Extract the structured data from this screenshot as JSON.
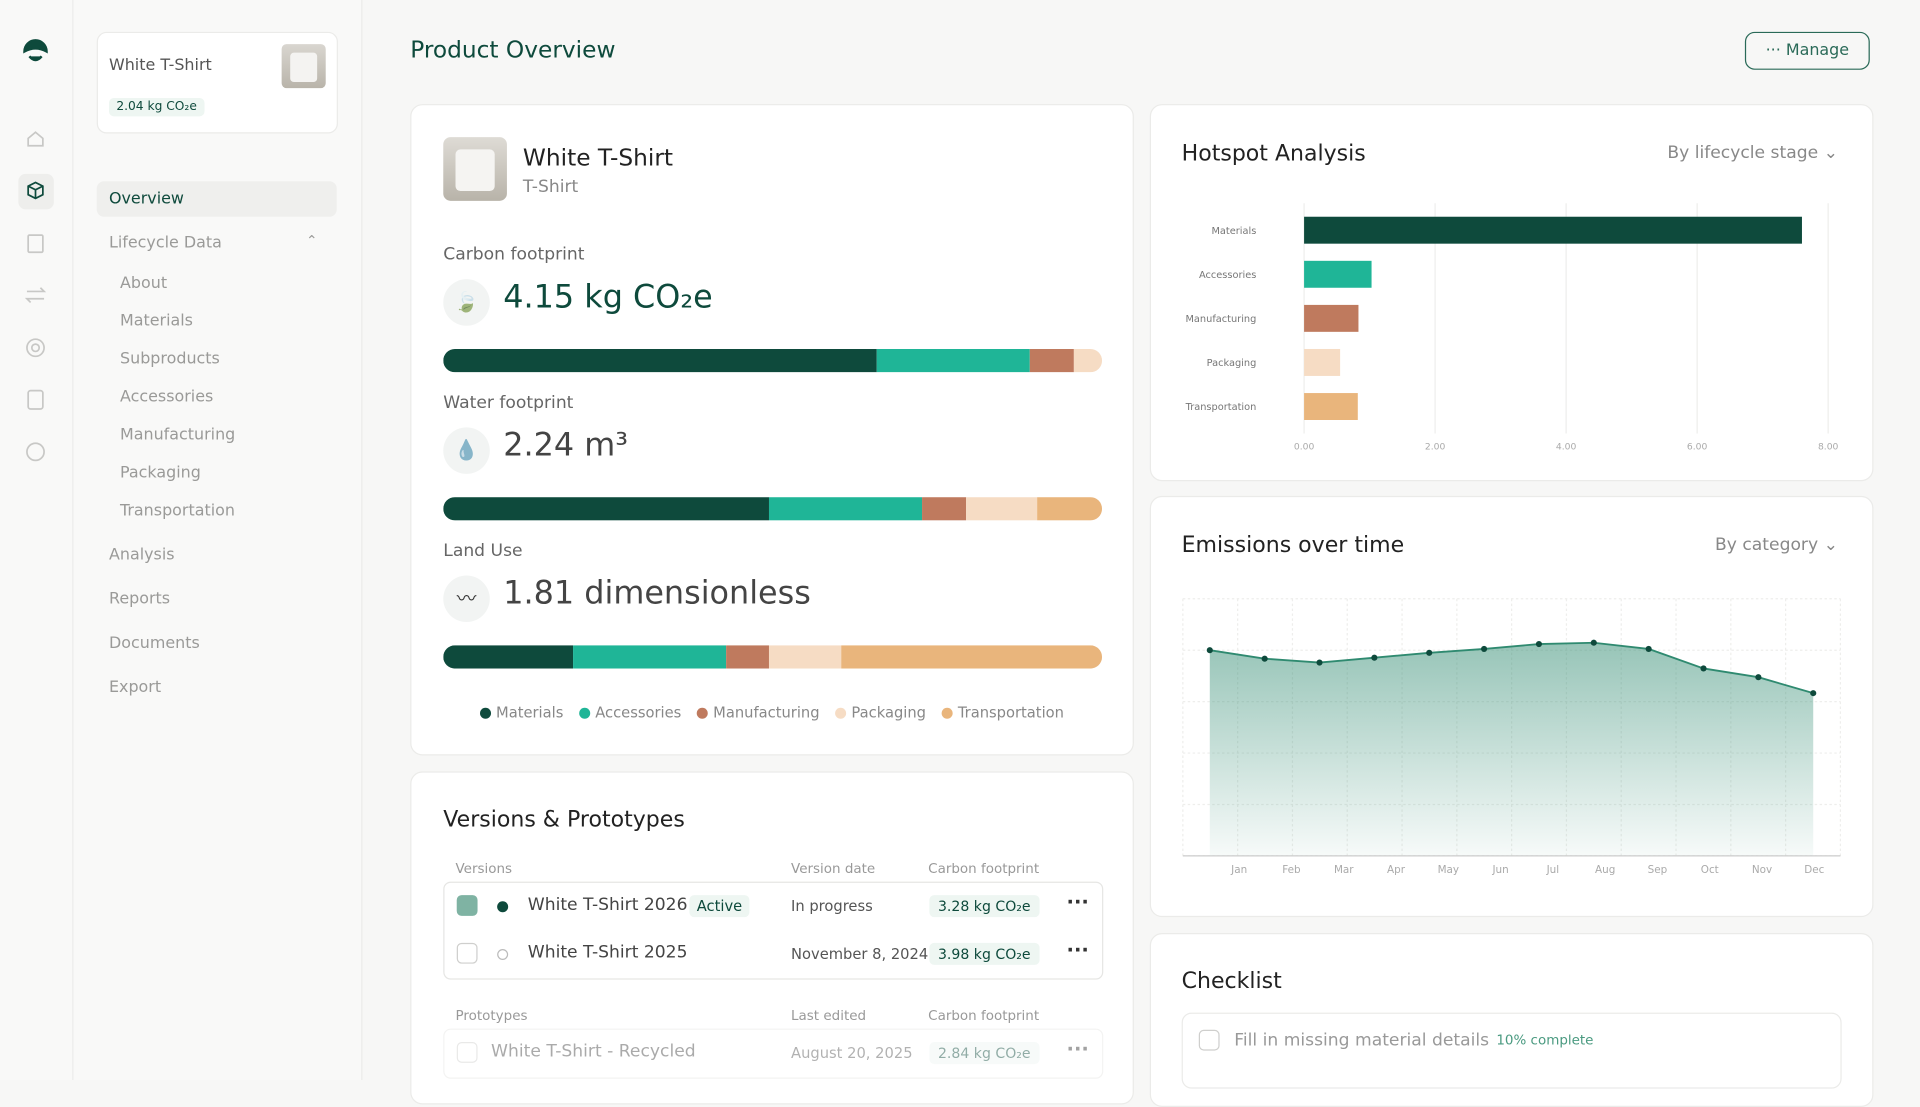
{
  "product_card": {
    "name": "White T-Shirt",
    "badge": "2.04 kg CO₂e"
  },
  "nav": {
    "items": [
      "Overview",
      "Lifecycle Data"
    ],
    "lifecycle_items": [
      "About",
      "Materials",
      "Subproducts",
      "Accessories",
      "Manufacturing",
      "Packaging",
      "Transportation"
    ],
    "more_items": [
      "Analysis",
      "Reports",
      "Documents",
      "Export"
    ]
  },
  "header": {
    "title": "Product Overview",
    "button": "Manage"
  },
  "product": {
    "name": "White T-Shirt",
    "category": "T-Shirt"
  },
  "legend": [
    {
      "name": "Materials",
      "color": "#0e4a3c"
    },
    {
      "name": "Accessories",
      "color": "#1fb597"
    },
    {
      "name": "Manufacturing",
      "color": "#bf7a5e"
    },
    {
      "name": "Packaging",
      "color": "#f6dcc4"
    },
    {
      "name": "Transportation",
      "color": "#e9b57c"
    }
  ],
  "footprints": [
    {
      "label": "Carbon footprint",
      "value": "4.15 kg CO₂e",
      "segments": [
        65.8,
        23.2,
        6.7,
        4.3
      ]
    },
    {
      "label": "Water footprint",
      "value": "2.24 m³",
      "segments": [
        49.4,
        23.2,
        6.7,
        10.8,
        9.9
      ]
    },
    {
      "label": "Land Use",
      "value": "1.81 dimensionless",
      "segments": [
        19.7,
        23.2,
        6.5,
        11.0,
        39.6
      ]
    }
  ],
  "versions": {
    "title": "Versions & Prototypes",
    "versions_header": [
      "Versions",
      "Version date",
      "Carbon footprint"
    ],
    "versions_rows": [
      {
        "name": "White T-Shirt 2026",
        "status": "Active",
        "date": "In progress",
        "footprint": "3.28 kg CO₂e"
      },
      {
        "name": "White T-Shirt 2025",
        "date": "November 8, 2024",
        "footprint": "3.98 kg CO₂e"
      }
    ],
    "prototypes_header": [
      "Prototypes",
      "Last edited",
      "Carbon footprint"
    ],
    "prototypes_rows": [
      {
        "name": "White T-Shirt - Recycled",
        "date": "August 20, 2025",
        "footprint": "2.84 kg CO₂e"
      }
    ]
  },
  "checklist": {
    "title": "Checklist",
    "items": [
      {
        "text": "Fill in missing material details",
        "progress": "10% complete"
      }
    ]
  },
  "chart_data": [
    {
      "type": "bar",
      "orientation": "horizontal",
      "title": "Hotspot Analysis",
      "control": "By lifecycle stage",
      "categories": [
        "Materials",
        "Accessories",
        "Manufacturing",
        "Packaging",
        "Transportation"
      ],
      "values": [
        7.6,
        1.03,
        0.83,
        0.55,
        0.82
      ],
      "colors": [
        "#0e4a3c",
        "#1fb597",
        "#bf7a5e",
        "#f6dcc4",
        "#e9b57c"
      ],
      "xlim": [
        0,
        8
      ],
      "xticks": [
        {
          "value": 0,
          "label": "0.00"
        },
        {
          "value": 2,
          "label": "2.00"
        },
        {
          "value": 4,
          "label": "4.00"
        },
        {
          "value": 6,
          "label": "6.00"
        },
        {
          "value": 8,
          "label": "8.00"
        }
      ],
      "grid": true
    },
    {
      "type": "area",
      "title": "Emissions over time",
      "control": "By category",
      "categories": [
        "Jan",
        "Feb",
        "Mar",
        "Apr",
        "May",
        "Jun",
        "Jul",
        "Aug",
        "Sep",
        "Oct",
        "Nov",
        "Dec"
      ],
      "values": [
        80,
        76.7,
        75.2,
        77.1,
        79.0,
        80.5,
        82.4,
        82.9,
        80.5,
        72.9,
        69.5,
        63.3
      ],
      "ylim": [
        0,
        100
      ],
      "color": "#2f8a70",
      "grid": true
    }
  ]
}
